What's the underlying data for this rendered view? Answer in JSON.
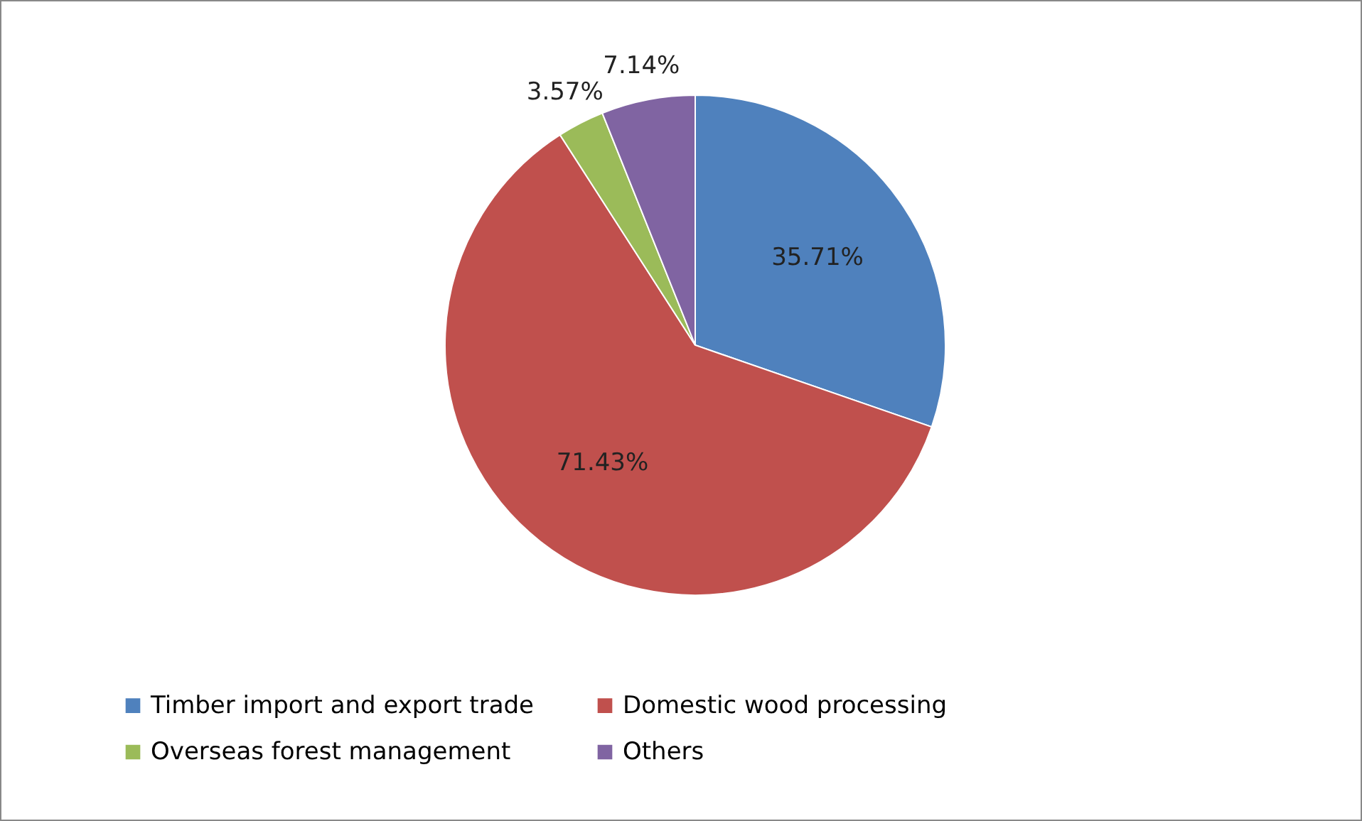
{
  "chart_data": {
    "type": "pie",
    "categories": [
      "Timber import and export trade",
      "Domestic wood processing",
      "Overseas forest management",
      "Others"
    ],
    "values": [
      35.71,
      71.43,
      3.57,
      7.14
    ],
    "colors": [
      "#4f81bd",
      "#c0504d",
      "#9bbb59",
      "#8064a2"
    ],
    "value_labels": [
      "35.71%",
      "71.43%",
      "3.57%",
      "7.14%"
    ],
    "legend": "bottom"
  }
}
